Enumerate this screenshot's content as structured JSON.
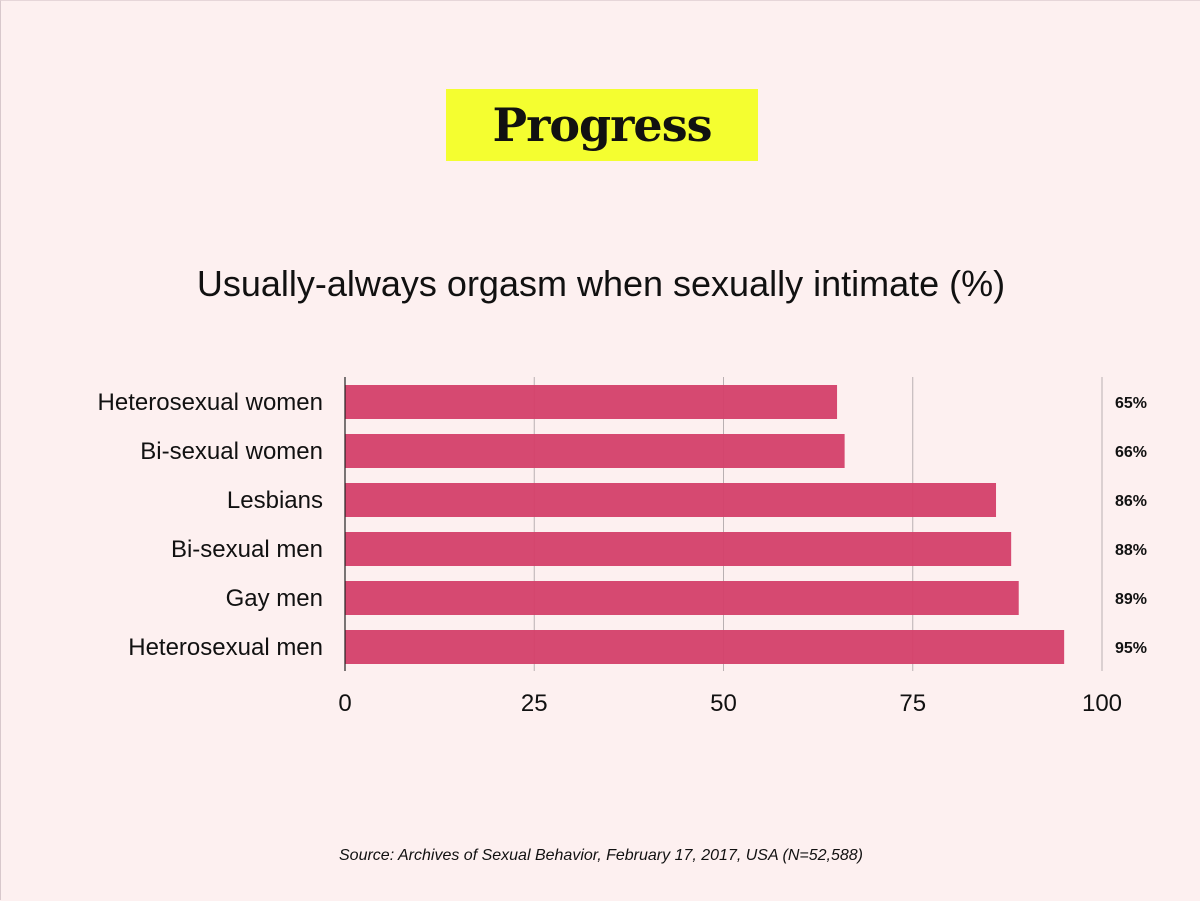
{
  "badge": {
    "text": "Progress",
    "color": "#f4fe30"
  },
  "source": "Source: Archives of Sexual Behavior, February 17, 2017, USA (N=52,588)",
  "colors": {
    "bar": "#d4426b",
    "grid": "#b9b0b2",
    "axis": "#222222"
  },
  "chart_data": {
    "type": "bar",
    "orientation": "horizontal",
    "title": "Usually-always orgasm when sexually intimate (%)",
    "categories": [
      "Heterosexual women",
      "Bi-sexual women",
      "Lesbians",
      "Bi-sexual men",
      "Gay men",
      "Heterosexual men"
    ],
    "values": [
      65,
      66,
      86,
      88,
      89,
      95
    ],
    "value_labels": [
      "65%",
      "66%",
      "86%",
      "88%",
      "89%",
      "95%"
    ],
    "xlim": [
      0,
      100
    ],
    "xticks": [
      0,
      25,
      50,
      75,
      100
    ],
    "xtick_labels": [
      "0",
      "25",
      "50",
      "75",
      "100"
    ],
    "xlabel": "",
    "ylabel": "",
    "grid": true,
    "legend": "none"
  }
}
